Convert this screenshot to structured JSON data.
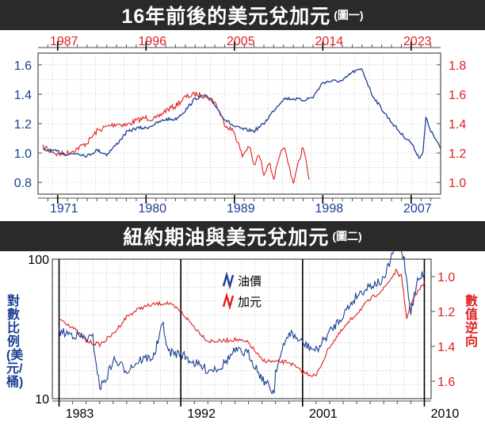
{
  "colors": {
    "blue": "#1c3f94",
    "red": "#e02020",
    "banner": "#2a2a2a",
    "grid": "#c8c8c8",
    "frame": "#4d4d4d"
  },
  "chart_data": [
    {
      "type": "line",
      "title": "16年前後的美元兌加元",
      "subtitle": "(圖一)",
      "x_bottom_ticks": [
        "1971",
        "1980",
        "1989",
        "1998",
        "2007"
      ],
      "x_top_ticks": [
        "1987",
        "1996",
        "2005",
        "2014",
        "2023"
      ],
      "y_left_ticks": [
        "0.8",
        "1.0",
        "1.2",
        "1.4",
        "1.6"
      ],
      "y_right_ticks": [
        "1.0",
        "1.2",
        "1.4",
        "1.6",
        "1.8"
      ],
      "x_bottom_range": [
        1969,
        2010
      ],
      "x_top_range": [
        1985,
        2026
      ],
      "y_left_range": [
        0.72,
        1.68
      ],
      "y_right_range": [
        0.92,
        1.88
      ],
      "grid": true,
      "series": [
        {
          "axis": "bottom-left",
          "x": [
            1969.5,
            1971,
            1972,
            1973,
            1974,
            1975,
            1976,
            1977,
            1978,
            1979,
            1980,
            1981,
            1982,
            1983,
            1984,
            1985,
            1986,
            1987,
            1988,
            1989,
            1990,
            1991,
            1992,
            1993,
            1994,
            1995,
            1996,
            1997,
            1998,
            1999,
            2000,
            2001,
            2002,
            2003,
            2004,
            2005,
            2006,
            2007,
            2007.8,
            2008.2,
            2008.5,
            2009,
            2010
          ],
          "y": [
            1.02,
            1.01,
            0.99,
            1.0,
            0.98,
            1.02,
            0.99,
            1.06,
            1.14,
            1.17,
            1.17,
            1.2,
            1.23,
            1.23,
            1.29,
            1.37,
            1.39,
            1.33,
            1.23,
            1.18,
            1.16,
            1.15,
            1.2,
            1.29,
            1.37,
            1.37,
            1.36,
            1.38,
            1.48,
            1.49,
            1.49,
            1.55,
            1.57,
            1.4,
            1.3,
            1.21,
            1.13,
            1.07,
            0.97,
            1.0,
            1.24,
            1.15,
            1.03
          ]
        },
        {
          "axis": "top-right",
          "x": [
            1985.5,
            1986,
            1987,
            1988,
            1989,
            1990,
            1991,
            1992,
            1993,
            1994,
            1995,
            1996,
            1997,
            1998,
            1999,
            2000,
            2001,
            2002,
            2003,
            2004,
            2005,
            2005.8,
            2006.5,
            2007,
            2007.5,
            2008,
            2008.5,
            2009,
            2010,
            2011,
            2012,
            2012.6
          ],
          "y": [
            1.24,
            1.23,
            1.19,
            1.2,
            1.23,
            1.27,
            1.35,
            1.38,
            1.4,
            1.39,
            1.42,
            1.44,
            1.43,
            1.49,
            1.52,
            1.58,
            1.6,
            1.59,
            1.55,
            1.4,
            1.34,
            1.18,
            1.25,
            1.11,
            1.19,
            1.06,
            1.14,
            1.03,
            1.25,
            1.0,
            1.25,
            1.02
          ]
        }
      ]
    },
    {
      "type": "line",
      "title": "紐約期油與美元兌加元",
      "subtitle": "(圖二)",
      "x_ticks": [
        "1983",
        "1992",
        "2001",
        "2010"
      ],
      "x_range": [
        1982.5,
        2010.5
      ],
      "y_left_ticks": [
        "100",
        "10"
      ],
      "y_left_range_log": [
        10,
        100
      ],
      "y_right_ticks": [
        "1.0",
        "1.2",
        "1.4",
        "1.6"
      ],
      "y_right_range_inverted": [
        0.9,
        1.7
      ],
      "y_left_label": "對數比例(美元/桶)",
      "y_right_label": "數值逆向",
      "legend_position": "top-center",
      "series": [
        {
          "name": "油價",
          "axis": "left-log",
          "x": [
            1983,
            1984,
            1985,
            1985.5,
            1986,
            1986.5,
            1987,
            1988,
            1989,
            1990,
            1990.7,
            1991,
            1991.5,
            1992,
            1993,
            1994,
            1995,
            1996,
            1997,
            1998,
            1998.9,
            1999,
            2000,
            2001,
            2002,
            2003,
            2004,
            2005,
            2006,
            2007,
            2008,
            2008.5,
            2009,
            2009.5,
            2010
          ],
          "y": [
            30,
            29,
            27,
            27,
            12,
            14,
            19,
            16,
            19,
            20,
            35,
            22,
            21,
            21,
            18,
            16,
            17,
            22,
            21,
            14,
            11,
            16,
            30,
            25,
            22,
            30,
            40,
            55,
            65,
            70,
            140,
            100,
            42,
            70,
            80
          ]
        },
        {
          "name": "加元",
          "axis": "right-inverted",
          "x": [
            1983,
            1984,
            1985,
            1986,
            1987,
            1988,
            1989,
            1990,
            1991,
            1992,
            1993,
            1994,
            1995,
            1996,
            1997,
            1998,
            1999,
            2000,
            2001,
            2002,
            2003,
            2004,
            2005,
            2006,
            2007,
            2007.9,
            2008.3,
            2008.7,
            2009,
            2009.6,
            2010
          ],
          "y": [
            1.24,
            1.29,
            1.37,
            1.39,
            1.33,
            1.23,
            1.18,
            1.16,
            1.15,
            1.2,
            1.29,
            1.37,
            1.37,
            1.36,
            1.38,
            1.48,
            1.49,
            1.49,
            1.55,
            1.57,
            1.4,
            1.3,
            1.21,
            1.13,
            1.07,
            0.97,
            1.0,
            1.24,
            1.15,
            1.08,
            1.03
          ]
        }
      ]
    }
  ]
}
